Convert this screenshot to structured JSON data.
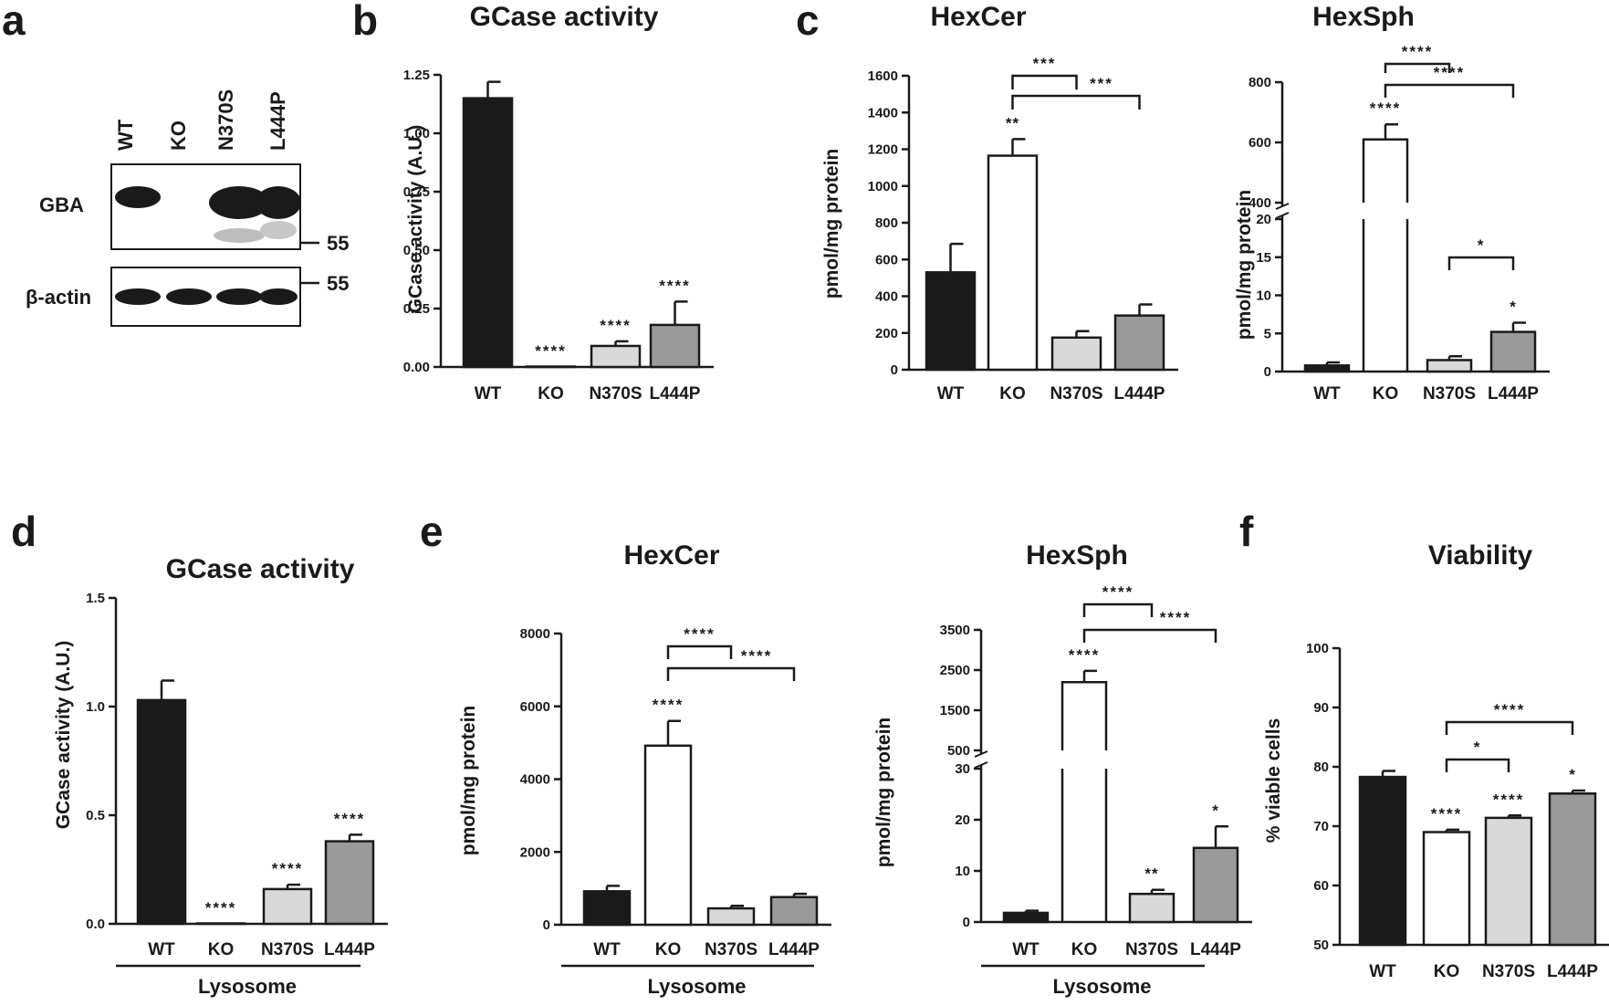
{
  "panel_labels": [
    "a",
    "b",
    "c",
    "d",
    "e",
    "f"
  ],
  "blot": {
    "lanes": [
      "WT",
      "KO",
      "N370S",
      "L444P"
    ],
    "rows": [
      "GBA",
      "β-actin"
    ],
    "markers": [
      "55",
      "55"
    ]
  },
  "group_label": "Lysosome",
  "colors": {
    "WT": "#1a1a1a",
    "KO": "#ffffff",
    "N370S": "#d9d9d9",
    "L444P": "#9a9a9a"
  },
  "chart_data": [
    {
      "id": "b",
      "type": "bar",
      "title": "GCase activity",
      "ylabel": "GCase activity (A.U.)",
      "ylim": [
        0,
        1.25
      ],
      "yticks": [
        "0.00",
        "0.25",
        "0.50",
        "0.75",
        "1.00",
        "1.25"
      ],
      "categories": [
        "WT",
        "KO",
        "N370S",
        "L444P"
      ],
      "values": [
        1.15,
        0.0,
        0.09,
        0.18
      ],
      "errors": [
        0.07,
        0.0,
        0.02,
        0.1
      ],
      "sig_labels": [
        "",
        "****",
        "****",
        "****"
      ],
      "brackets": []
    },
    {
      "id": "c1",
      "type": "bar",
      "title": "HexCer",
      "ylabel": "pmol/mg protein",
      "ylim": [
        0,
        1600
      ],
      "yticks": [
        "0",
        "200",
        "400",
        "600",
        "800",
        "1000",
        "1200",
        "1400",
        "1600"
      ],
      "categories": [
        "WT",
        "KO",
        "N370S",
        "L444P"
      ],
      "values": [
        530,
        1165,
        175,
        295
      ],
      "errors": [
        155,
        90,
        35,
        60
      ],
      "sig_labels": [
        "",
        "**",
        "",
        ""
      ],
      "brackets": [
        {
          "from": 1,
          "to": 2,
          "label": "***"
        },
        {
          "from": 1,
          "to": 3,
          "label": "***"
        }
      ]
    },
    {
      "id": "c2",
      "type": "bar",
      "title": "HexSph",
      "ylabel": "pmol/mg protein",
      "broken_axis": true,
      "lower_ylim": [
        0,
        20
      ],
      "upper_ylim": [
        400,
        800
      ],
      "yticks_lower": [
        "0",
        "5",
        "10",
        "15",
        "20"
      ],
      "yticks_upper": [
        "400",
        "600",
        "800"
      ],
      "categories": [
        "WT",
        "KO",
        "N370S",
        "L444P"
      ],
      "values": [
        0.8,
        610,
        1.5,
        5.2
      ],
      "errors": [
        0.4,
        50,
        0.5,
        1.2
      ],
      "sig_labels": [
        "",
        "****",
        "",
        "*"
      ],
      "brackets": [
        {
          "from": 1,
          "to": 2,
          "label": "****"
        },
        {
          "from": 1,
          "to": 3,
          "label": "****"
        },
        {
          "from": 2,
          "to": 3,
          "label": "*"
        }
      ]
    },
    {
      "id": "d",
      "type": "bar",
      "title": "GCase activity",
      "ylabel": "GCase activity (A.U.)",
      "ylim": [
        0,
        1.5
      ],
      "yticks": [
        "0.0",
        "0.5",
        "1.0",
        "1.5"
      ],
      "categories": [
        "WT",
        "KO",
        "N370S",
        "L444P"
      ],
      "values": [
        1.03,
        0.0,
        0.16,
        0.38
      ],
      "errors": [
        0.09,
        0.0,
        0.02,
        0.03
      ],
      "sig_labels": [
        "",
        "****",
        "****",
        "****"
      ],
      "brackets": []
    },
    {
      "id": "e1",
      "type": "bar",
      "title": "HexCer",
      "ylabel": "pmol/mg protein",
      "ylim": [
        0,
        8000
      ],
      "yticks": [
        "0",
        "2000",
        "4000",
        "6000",
        "8000"
      ],
      "categories": [
        "WT",
        "KO",
        "N370S",
        "L444P"
      ],
      "values": [
        920,
        4920,
        450,
        760
      ],
      "errors": [
        150,
        680,
        70,
        90
      ],
      "sig_labels": [
        "",
        "****",
        "",
        ""
      ],
      "brackets": [
        {
          "from": 1,
          "to": 2,
          "label": "****"
        },
        {
          "from": 1,
          "to": 3,
          "label": "****"
        }
      ]
    },
    {
      "id": "e2",
      "type": "bar",
      "title": "HexSph",
      "ylabel": "pmol/mg protein",
      "broken_axis": true,
      "lower_ylim": [
        0,
        30
      ],
      "upper_ylim": [
        500,
        3500
      ],
      "yticks_lower": [
        "0",
        "10",
        "20",
        "30"
      ],
      "yticks_upper": [
        "500",
        "1500",
        "2500",
        "3500"
      ],
      "categories": [
        "WT",
        "KO",
        "N370S",
        "L444P"
      ],
      "values": [
        1.8,
        2200,
        5.5,
        14.5
      ],
      "errors": [
        0.4,
        280,
        0.8,
        4.2
      ],
      "sig_labels": [
        "",
        "****",
        "**",
        "*"
      ],
      "brackets": [
        {
          "from": 1,
          "to": 2,
          "label": "****"
        },
        {
          "from": 1,
          "to": 3,
          "label": "****"
        }
      ]
    },
    {
      "id": "f",
      "type": "bar",
      "title": "Viability",
      "ylabel": "% viable cells",
      "ylim": [
        50,
        100
      ],
      "yticks": [
        "50",
        "60",
        "70",
        "80",
        "90",
        "100"
      ],
      "categories": [
        "WT",
        "KO",
        "N370S",
        "L444P"
      ],
      "values": [
        78.3,
        69.0,
        71.4,
        75.5
      ],
      "errors": [
        1.0,
        0.4,
        0.4,
        0.5
      ],
      "sig_labels": [
        "",
        "****",
        "****",
        "*"
      ],
      "brackets": [
        {
          "from": 1,
          "to": 2,
          "label": "*"
        },
        {
          "from": 1,
          "to": 3,
          "label": "****"
        }
      ]
    }
  ]
}
